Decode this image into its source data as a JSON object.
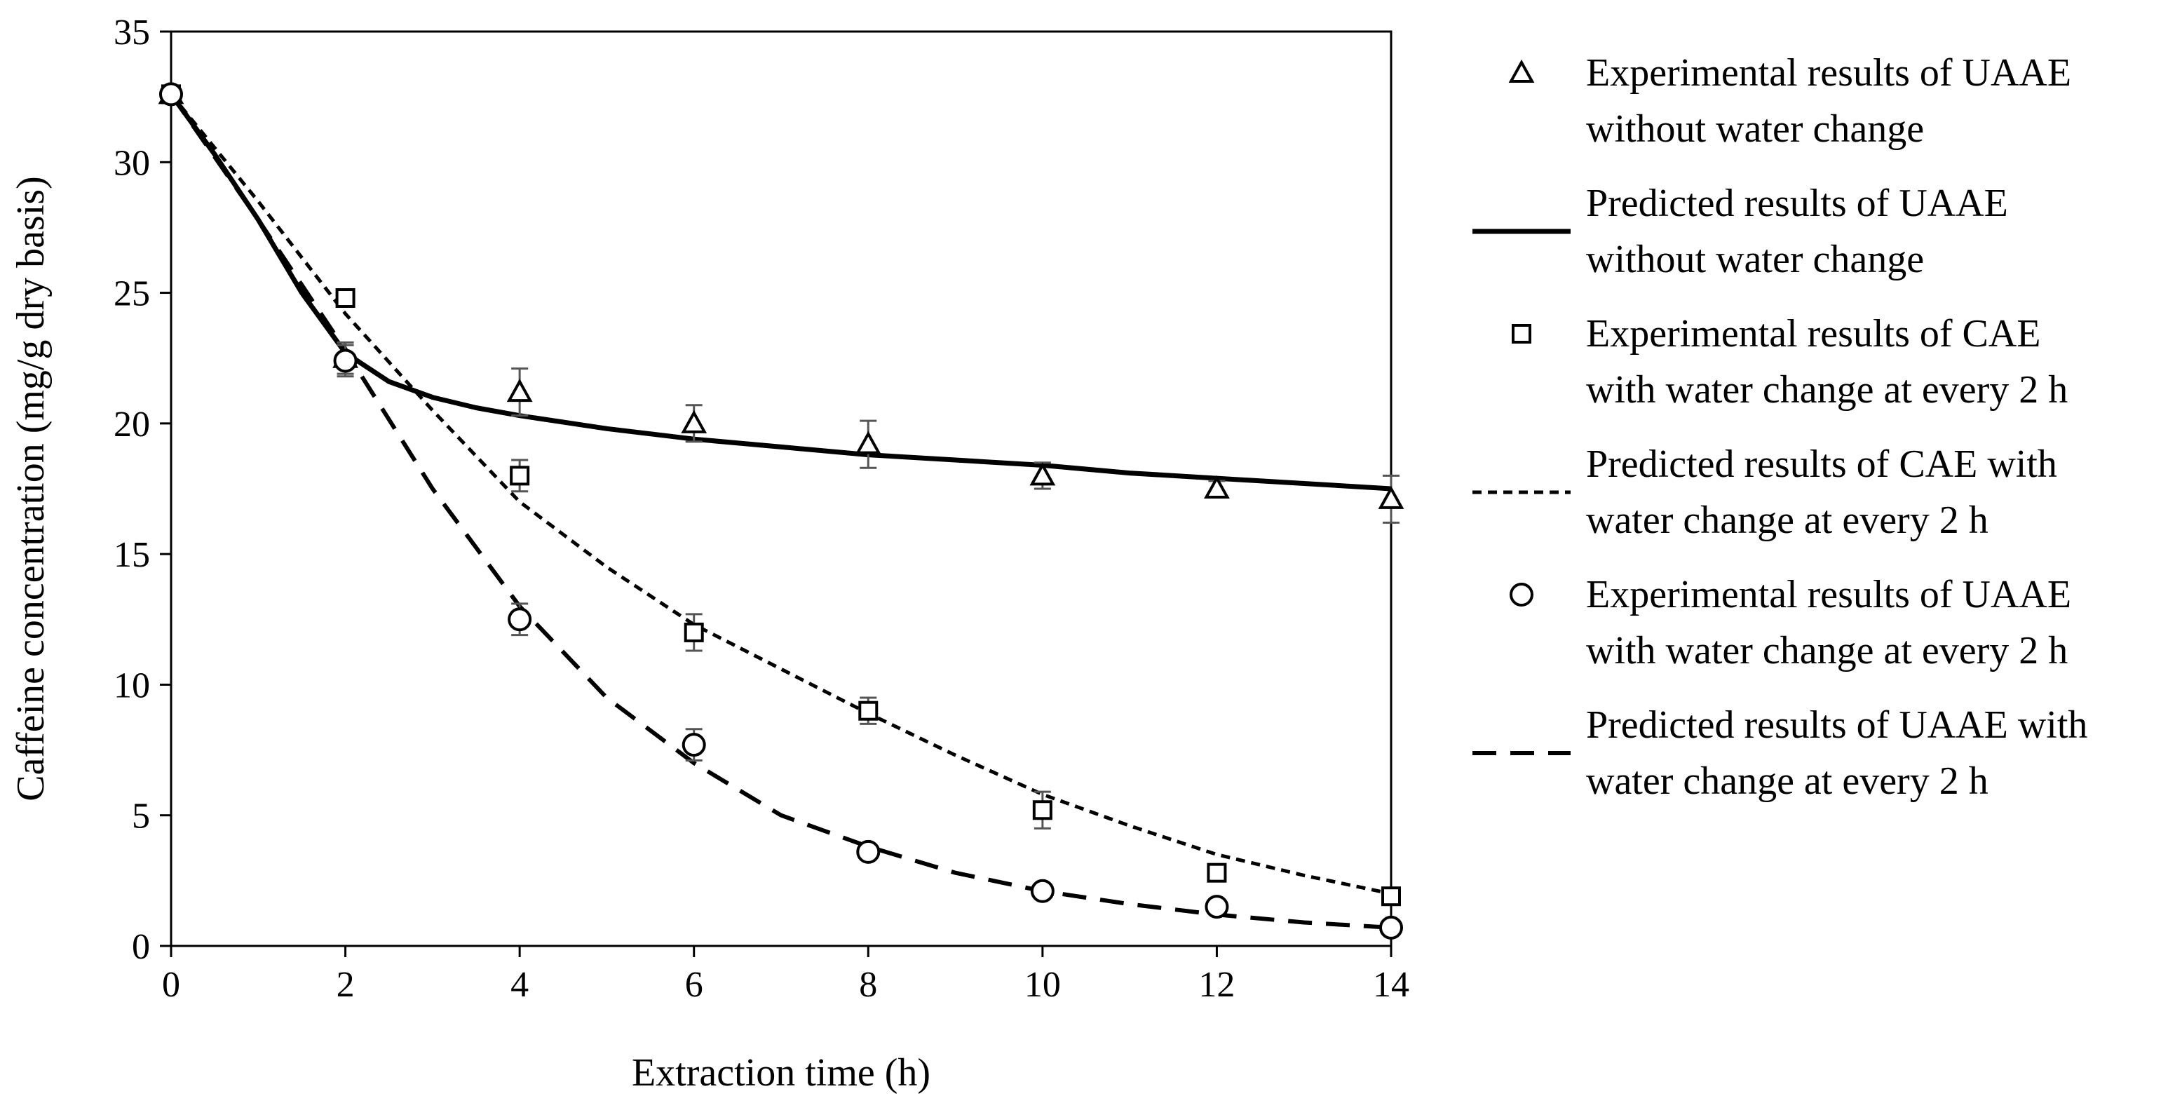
{
  "chart_data": {
    "type": "scatter",
    "title": "",
    "xlabel": "Extraction time (h)",
    "ylabel": "Caffeine concentration (mg/g dry basis)",
    "xlim": [
      0,
      14
    ],
    "ylim": [
      0,
      35
    ],
    "xticks": [
      "0",
      "2",
      "4",
      "6",
      "8",
      "10",
      "12",
      "14"
    ],
    "yticks": [
      "0",
      "5",
      "10",
      "15",
      "20",
      "25",
      "30",
      "35"
    ],
    "grid": false,
    "legend_position": "right",
    "series": [
      {
        "name": "Experimental results of UAAE without water change",
        "legend_lines": [
          "Experimental results of UAAE",
          "without water change"
        ],
        "kind": "marker",
        "marker": "triangle",
        "x": [
          0,
          2,
          4,
          6,
          8,
          10,
          12,
          14
        ],
        "y": [
          32.6,
          22.5,
          21.2,
          20.0,
          19.2,
          18.0,
          17.5,
          17.1
        ],
        "error": [
          0,
          0.6,
          0.9,
          0.7,
          0.9,
          0.5,
          0.3,
          0.9
        ]
      },
      {
        "name": "Predicted results of UAAE without water change",
        "legend_lines": [
          "Predicted results of UAAE",
          "without water change"
        ],
        "kind": "line",
        "line_style": "solid",
        "x": [
          0,
          0.5,
          1,
          1.5,
          2,
          2.5,
          3,
          3.5,
          4,
          5,
          6,
          7,
          8,
          9,
          10,
          11,
          12,
          13,
          14
        ],
        "y": [
          32.6,
          30.3,
          27.8,
          25.0,
          22.7,
          21.6,
          21.0,
          20.6,
          20.3,
          19.8,
          19.4,
          19.1,
          18.8,
          18.6,
          18.4,
          18.1,
          17.9,
          17.7,
          17.5
        ]
      },
      {
        "name": "Experimental results of CAE with water change at every 2 h",
        "legend_lines": [
          "Experimental results of CAE",
          "with water change at every 2 h"
        ],
        "kind": "marker",
        "marker": "square",
        "x": [
          0,
          2,
          4,
          6,
          8,
          10,
          12,
          14
        ],
        "y": [
          32.6,
          24.8,
          18.0,
          12.0,
          9.0,
          5.2,
          2.8,
          1.9
        ],
        "error": [
          0,
          0,
          0.6,
          0.7,
          0.5,
          0.7,
          0,
          0
        ]
      },
      {
        "name": "Predicted results of CAE with water change at every 2 h",
        "legend_lines": [
          "Predicted results of CAE with",
          "water change at every 2 h"
        ],
        "kind": "line",
        "line_style": "dotted",
        "x": [
          0,
          1,
          2,
          3,
          4,
          5,
          6,
          7,
          8,
          9,
          10,
          11,
          12,
          13,
          14
        ],
        "y": [
          32.6,
          28.5,
          24.2,
          20.5,
          17.0,
          14.5,
          12.3,
          10.6,
          8.9,
          7.3,
          5.8,
          4.6,
          3.5,
          2.7,
          2.0
        ]
      },
      {
        "name": "Experimental results of UAAE with water change at every 2 h",
        "legend_lines": [
          "Experimental results of UAAE",
          "with water change at every 2 h"
        ],
        "kind": "marker",
        "marker": "circle",
        "x": [
          0,
          2,
          4,
          6,
          8,
          10,
          12,
          14
        ],
        "y": [
          32.6,
          22.4,
          12.5,
          7.7,
          3.6,
          2.1,
          1.5,
          0.7
        ],
        "error": [
          0,
          0.6,
          0.6,
          0.6,
          0,
          0,
          0,
          0
        ]
      },
      {
        "name": "Predicted results of UAAE with water change at every 2 h",
        "legend_lines": [
          "Predicted results of UAAE with",
          "water change at every 2 h"
        ],
        "kind": "line",
        "line_style": "dashed",
        "x": [
          0,
          1,
          2,
          3,
          4,
          5,
          6,
          7,
          8,
          9,
          10,
          11,
          12,
          13,
          14
        ],
        "y": [
          32.6,
          27.8,
          22.8,
          17.5,
          13.0,
          9.5,
          7.0,
          5.0,
          3.8,
          2.8,
          2.1,
          1.6,
          1.2,
          0.9,
          0.7
        ]
      }
    ]
  }
}
